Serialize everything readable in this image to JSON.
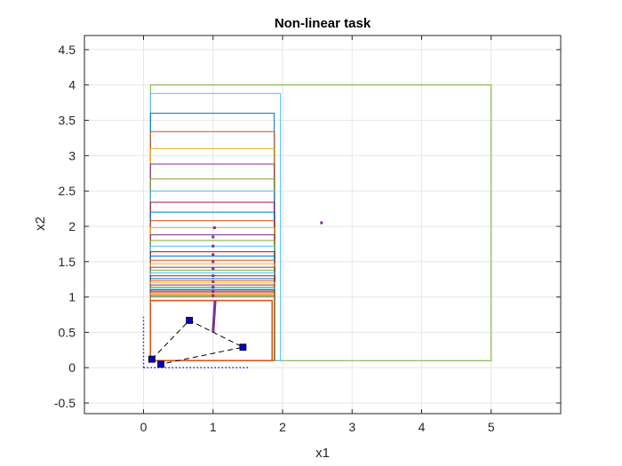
{
  "chart_data": {
    "type": "line",
    "title": "Non-linear task",
    "xlabel": "x1",
    "ylabel": "x2",
    "xlim": [
      -0.85,
      6.0
    ],
    "ylim": [
      -0.65,
      4.7
    ],
    "xticks": [
      0,
      1,
      2,
      3,
      4,
      5
    ],
    "yticks": [
      -0.5,
      0,
      0.5,
      1,
      1.5,
      2,
      2.5,
      3,
      3.5,
      4,
      4.5
    ],
    "xtick_labels": [
      "0",
      "1",
      "2",
      "3",
      "4",
      "5"
    ],
    "ytick_labels": [
      "-0.5",
      "0",
      "0.5",
      "1",
      "1.5",
      "2",
      "2.5",
      "3",
      "3.5",
      "4",
      "4.5"
    ],
    "grid": true,
    "outer_box": {
      "x0": 0.1,
      "x1": 5.0,
      "y0": 0.1,
      "y1": 4.0,
      "color": "#77ac30"
    },
    "cyan_box": {
      "x0": 0.1,
      "x1": 1.97,
      "y0": 0.1,
      "y1": 3.88,
      "color": "#4dbeee"
    },
    "stacked_box_tops": [
      3.6,
      3.34,
      3.1,
      2.88,
      2.67,
      2.5,
      2.34,
      2.2,
      2.08,
      1.98,
      1.88,
      1.8,
      1.72,
      1.64,
      1.58,
      1.52,
      1.47,
      1.42,
      1.38,
      1.34,
      1.3,
      1.26,
      1.23,
      1.2,
      1.17,
      1.14,
      1.12,
      1.1,
      1.08,
      1.06,
      1.04,
      1.02,
      1.0
    ],
    "stacked_box_x0": 0.1,
    "stacked_box_x1": 1.88,
    "stacked_box_y0": 0.1,
    "series_colors": [
      "#0072bd",
      "#d95319",
      "#edb120",
      "#7e2f8e",
      "#77ac30",
      "#4dbeee",
      "#a2142f"
    ],
    "bottom_box": {
      "x0": 0.1,
      "x1": 1.85,
      "y0": 0.1,
      "y1": 0.95,
      "color": "#d95319"
    },
    "purple_dots": [
      {
        "x": 1.02,
        "y": 1.98
      },
      {
        "x": 1.0,
        "y": 1.85
      },
      {
        "x": 1.0,
        "y": 1.72
      },
      {
        "x": 1.0,
        "y": 1.6
      },
      {
        "x": 1.0,
        "y": 1.5
      },
      {
        "x": 1.0,
        "y": 1.4
      },
      {
        "x": 1.0,
        "y": 1.3
      },
      {
        "x": 1.0,
        "y": 1.22
      },
      {
        "x": 1.0,
        "y": 1.14
      },
      {
        "x": 1.0,
        "y": 1.08
      },
      {
        "x": 1.0,
        "y": 1.02
      },
      {
        "x": 2.56,
        "y": 2.05
      }
    ],
    "purple_segment": {
      "x0": 1.0,
      "y0": 0.5,
      "x1": 1.03,
      "y1": 0.95,
      "color": "#7e2f8e"
    },
    "triangle_vertices": [
      {
        "x": 0.12,
        "y": 0.12
      },
      {
        "x": 0.66,
        "y": 0.67
      },
      {
        "x": 1.43,
        "y": 0.29
      },
      {
        "x": 0.25,
        "y": 0.05
      }
    ],
    "triangle_color": "#000000",
    "marker_color": "#0000cd",
    "dotted_axes": {
      "x_from": 0.0,
      "x_to": 1.52,
      "y_from": 0.0,
      "y_to": 0.72,
      "color": "#1f1fd1"
    }
  }
}
